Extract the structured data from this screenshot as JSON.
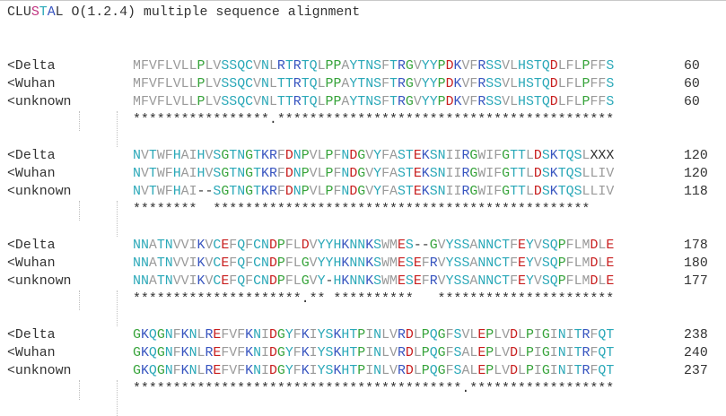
{
  "header": {
    "segments": [
      {
        "t": "CLU",
        "c": "#333333"
      },
      {
        "t": "S",
        "c": "#c0307e"
      },
      {
        "t": "T",
        "c": "#2aa8b8"
      },
      {
        "t": "A",
        "c": "#3855c0"
      },
      {
        "t": "L O(1.2.4) multiple sequence alignment",
        "c": "#333333"
      }
    ]
  },
  "colors": {
    "hydrophobic": "#9a9a9a",
    "small": "#36a33a",
    "polar": "#2aa8b8",
    "acidic": "#c81e1e",
    "basic": "#3855c0",
    "default": "#333333"
  },
  "blocks": [
    {
      "rows": [
        {
          "name": "<Delta",
          "seq": "MFVFLVLLPLVSSQCVNLRTRTQLPPAYTNSFTRGVYYPDKVFRSSVLHSTQDLFLPFFS",
          "num": "60"
        },
        {
          "name": "<Wuhan",
          "seq": "MFVFLVLLPLVSSQCVNLTTRTQLPPAYTNSFTRGVYYPDKVFRSSVLHSTQDLFLPFFS",
          "num": "60"
        },
        {
          "name": "<unknown",
          "seq": "MFVFLVLLPLVSSQCVNLTTRTQLPPAYTNSFTRGVYYPDKVFRSSVLHSTQDLFLPFFS",
          "num": "60"
        }
      ],
      "consensus": "*****************.******************************************"
    },
    {
      "rows": [
        {
          "name": "<Delta",
          "seq": "NVTWFHAIHVSGTNGTKRFDNPVLPFNDGVYFASTEKSNIIRGWIFGTTLDSKTQSLXXX",
          "num": "120"
        },
        {
          "name": "<Wuhan",
          "seq": "NVTWFHAIHVSGTNGTKRFDNPVLPFNDGVYFASTEKSNIIRGWIFGTTLDSKTQSLLIV",
          "num": "120"
        },
        {
          "name": "<unknown",
          "seq": "NVTWFHAI--SGTNGTKRFDNPVLPFNDGVYFASTEKSNIIRGWIFGTTLDSKTQSLLIV",
          "num": "118"
        }
      ],
      "consensus": "********  ***********************************************"
    },
    {
      "rows": [
        {
          "name": "<Delta",
          "seq": "NNATNVVIKVCEFQFCNDPFLDVYYHKNNKSWMES--GVYSSANNCTFEYVSQPFLMDLE",
          "num": "178"
        },
        {
          "name": "<Wuhan",
          "seq": "NNATNVVIKVCEFQFCNDPFLGVYYHKNNKSWMESEFRVYSSANNCTFEYVSQPFLMDLE",
          "num": "180"
        },
        {
          "name": "<unknown",
          "seq": "NNATNVVIKVCEFQFCNDPFLGVY-HKNNKSWMESEFRVYSSANNCTFEYVSQPFLMDLE",
          "num": "177"
        }
      ],
      "consensus": "*********************.** **********   **********************"
    },
    {
      "rows": [
        {
          "name": "<Delta",
          "seq": "GKQGNFKNLREFVFKNIDGYFKIYSKHTPINLVRDLPQGFSVLEPLVDLPIGINITRFQT",
          "num": "238"
        },
        {
          "name": "<Wuhan",
          "seq": "GKQGNFKNLREFVFKNIDGYFKIYSKHTPINLVRDLPQGFSALEPLVDLPIGINITRFQT",
          "num": "240"
        },
        {
          "name": "<unknown",
          "seq": "GKQGNFKNLREFVFKNIDGYFKIYSKHTPINLVRDLPQGFSALEPLVDLPIGINITRFQT",
          "num": "237"
        }
      ],
      "consensus": "*****************************************.******************"
    }
  ]
}
